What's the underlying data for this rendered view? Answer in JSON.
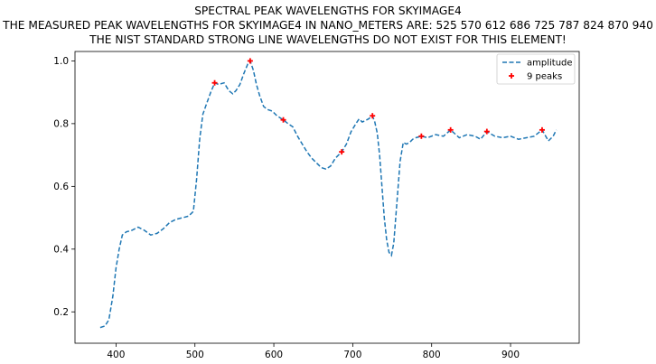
{
  "chart_data": {
    "type": "line",
    "title_lines": [
      "SPECTRAL PEAK WAVELENGTHS FOR SKYIMAGE4",
      "THE MEASURED PEAK WAVELENGTHS FOR SKYIMAGE4 IN NANO_METERS ARE: 525 570 612 686 725 787 824 870 940",
      "THE NIST STANDARD STRONG LINE WAVELENGTHS DO NOT EXIST FOR THIS ELEMENT!"
    ],
    "xlabel": "",
    "ylabel": "",
    "xlim": [
      348,
      987
    ],
    "ylim": [
      0.1,
      1.03
    ],
    "xticks": [
      400,
      500,
      600,
      700,
      800,
      900
    ],
    "yticks": [
      0.2,
      0.4,
      0.6,
      0.8,
      1.0
    ],
    "ytick_labels": [
      "0.2",
      "0.4",
      "0.6",
      "0.8",
      "1.0"
    ],
    "grid": false,
    "legend_position": "top-right",
    "series": [
      {
        "name": "amplitude",
        "style": "dashed",
        "color": "#1f77b4",
        "x": [
          380,
          386,
          391,
          396,
          400,
          404,
          408,
          413,
          420,
          428,
          436,
          444,
          452,
          460,
          468,
          476,
          484,
          492,
          498,
          502,
          506,
          510,
          515,
          520,
          525,
          530,
          537,
          543,
          548,
          552,
          557,
          562,
          567,
          570,
          574,
          578,
          582,
          587,
          592,
          598,
          604,
          612,
          618,
          624,
          630,
          636,
          642,
          648,
          654,
          660,
          666,
          672,
          678,
          686,
          692,
          698,
          704,
          708,
          712,
          716,
          720,
          725,
          728,
          731,
          734,
          737,
          740,
          743,
          746,
          749,
          752,
          756,
          760,
          764,
          768,
          772,
          776,
          780,
          787,
          795,
          805,
          815,
          824,
          835,
          845,
          855,
          862,
          870,
          880,
          890,
          900,
          910,
          920,
          930,
          940,
          948,
          954,
          958
        ],
        "y": [
          0.15,
          0.155,
          0.175,
          0.25,
          0.34,
          0.4,
          0.445,
          0.455,
          0.46,
          0.47,
          0.46,
          0.445,
          0.45,
          0.465,
          0.485,
          0.495,
          0.5,
          0.505,
          0.52,
          0.62,
          0.75,
          0.83,
          0.865,
          0.9,
          0.93,
          0.925,
          0.93,
          0.905,
          0.895,
          0.905,
          0.925,
          0.96,
          0.99,
          1.0,
          0.97,
          0.925,
          0.89,
          0.855,
          0.845,
          0.84,
          0.825,
          0.812,
          0.8,
          0.79,
          0.76,
          0.735,
          0.71,
          0.69,
          0.675,
          0.66,
          0.655,
          0.665,
          0.69,
          0.71,
          0.735,
          0.775,
          0.8,
          0.815,
          0.805,
          0.81,
          0.815,
          0.825,
          0.805,
          0.77,
          0.7,
          0.6,
          0.5,
          0.43,
          0.39,
          0.38,
          0.42,
          0.55,
          0.68,
          0.74,
          0.735,
          0.74,
          0.75,
          0.755,
          0.76,
          0.755,
          0.765,
          0.76,
          0.78,
          0.755,
          0.765,
          0.76,
          0.75,
          0.775,
          0.76,
          0.755,
          0.76,
          0.75,
          0.755,
          0.76,
          0.78,
          0.745,
          0.76,
          0.78
        ]
      }
    ],
    "peaks": {
      "name": "9 peaks",
      "marker": "+",
      "color": "#ff0000",
      "x": [
        525,
        570,
        612,
        686,
        725,
        787,
        824,
        870,
        940
      ],
      "y": [
        0.93,
        1.0,
        0.812,
        0.71,
        0.825,
        0.76,
        0.78,
        0.775,
        0.78
      ]
    }
  }
}
